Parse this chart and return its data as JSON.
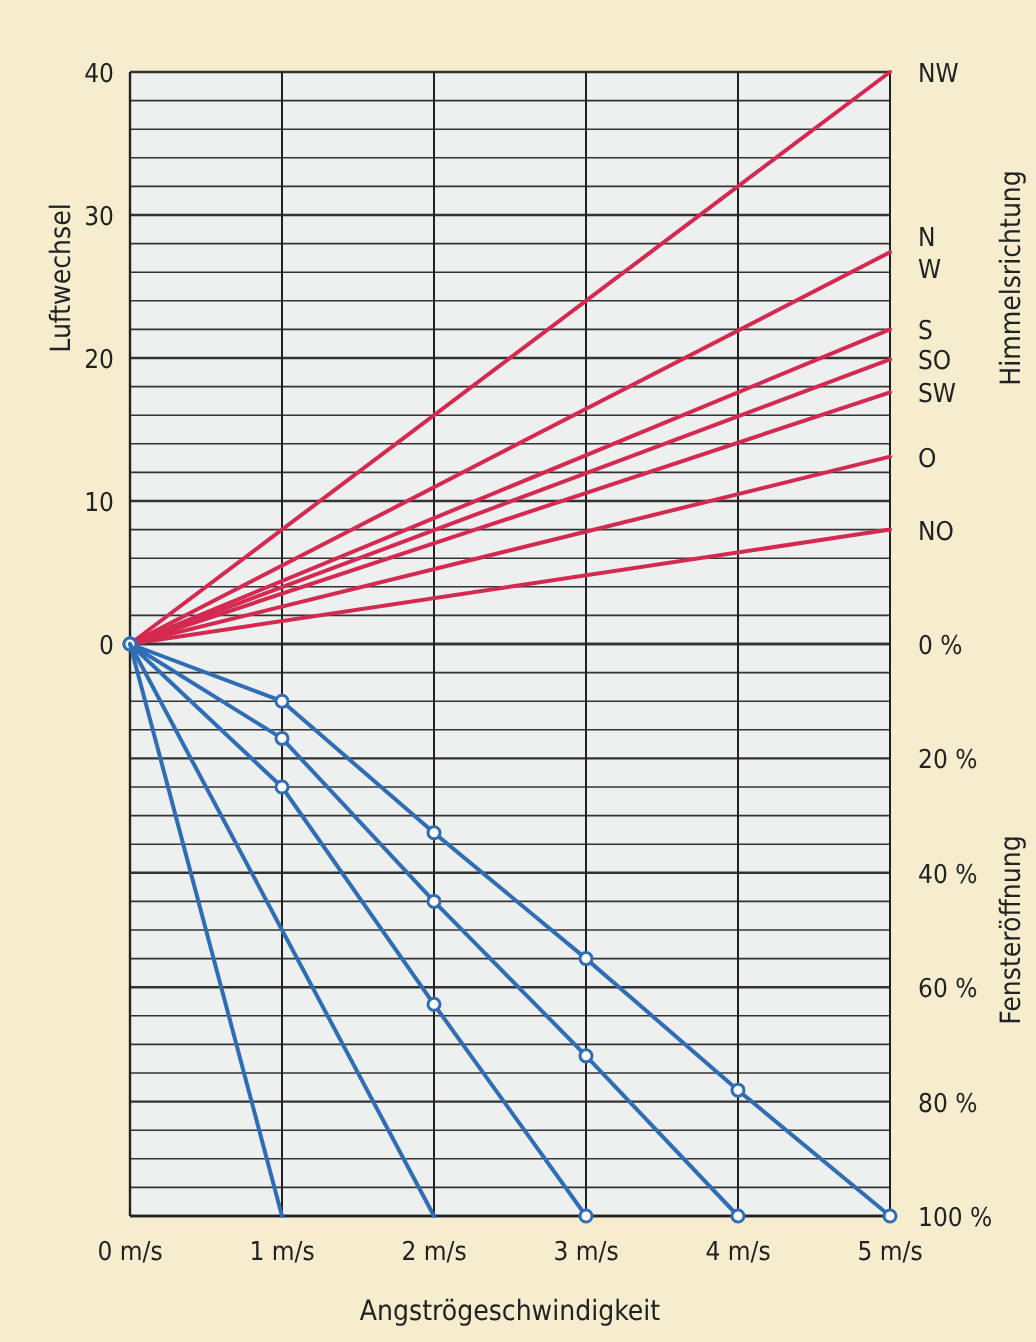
{
  "chart_data": {
    "type": "line",
    "xlabel": "Angströgeschwindigkeit",
    "ylabel": "Luftwechsel",
    "y2label": "Fensteröffnung",
    "annotations": [
      "Himmelsrichtung"
    ],
    "xlim": [
      0,
      5
    ],
    "xticks": [
      {
        "value": 0,
        "label": "0 m/s"
      },
      {
        "value": 1,
        "label": "1 m/s"
      },
      {
        "value": 2,
        "label": "2 m/s"
      },
      {
        "value": 3,
        "label": "3 m/s"
      },
      {
        "value": 4,
        "label": "4 m/s"
      },
      {
        "value": 5,
        "label": "5 m/s"
      }
    ],
    "ylim": [
      -40,
      40
    ],
    "yticks": [
      0,
      {
        "value": 2,
        "label": null
      },
      {
        "value": 4,
        "label": null
      },
      {
        "value": 6,
        "label": null
      },
      {
        "value": 8,
        "label": null
      },
      10,
      {
        "value": 12,
        "label": null
      },
      {
        "value": 14,
        "label": null
      },
      {
        "value": 16,
        "label": null
      },
      {
        "value": 18,
        "label": null
      },
      20,
      {
        "value": 22,
        "label": null
      },
      {
        "value": 24,
        "label": null
      },
      {
        "value": 26,
        "label": null
      },
      {
        "value": 28,
        "label": null
      },
      30,
      {
        "value": 32,
        "label": null
      },
      {
        "value": 34,
        "label": null
      },
      {
        "value": 36,
        "label": null
      },
      {
        "value": 38,
        "label": null
      },
      40
    ],
    "y2lim": [
      100,
      -100
    ],
    "y2ticks": [
      {
        "value": 0,
        "label": "0 %"
      },
      {
        "value": 5,
        "label": null
      },
      {
        "value": 10,
        "label": null
      },
      {
        "value": 15,
        "label": null
      },
      {
        "value": 20,
        "label": "20 %"
      },
      {
        "value": 25,
        "label": null
      },
      {
        "value": 30,
        "label": null
      },
      {
        "value": 35,
        "label": null
      },
      {
        "value": 40,
        "label": "40 %"
      },
      {
        "value": 45,
        "label": null
      },
      {
        "value": 50,
        "label": null
      },
      {
        "value": 55,
        "label": null
      },
      {
        "value": 60,
        "label": "60 %"
      },
      {
        "value": 65,
        "label": null
      },
      {
        "value": 70,
        "label": null
      },
      {
        "value": 75,
        "label": null
      },
      {
        "value": 80,
        "label": "80 %"
      },
      {
        "value": 85,
        "label": null
      },
      {
        "value": 90,
        "label": null
      },
      {
        "value": 95,
        "label": null
      },
      {
        "value": 100,
        "label": "100 %"
      }
    ],
    "grid": true,
    "marker": "none",
    "line_style": "solid",
    "series": [
      {
        "name": "NW",
        "color": "#d42a52",
        "x": [
          0,
          5
        ],
        "values": [
          0,
          40
        ]
      },
      {
        "name": "N W",
        "color": "#d42a52",
        "x": [
          0,
          5
        ],
        "values": [
          0,
          27.4
        ]
      },
      {
        "name": "S",
        "color": "#d42a52",
        "x": [
          0,
          5
        ],
        "values": [
          0,
          22
        ]
      },
      {
        "name": "SO",
        "color": "#d42a52",
        "x": [
          0,
          5
        ],
        "values": [
          0,
          19.9
        ]
      },
      {
        "name": "SW",
        "color": "#d42a52",
        "x": [
          0,
          5
        ],
        "values": [
          0,
          17.6
        ]
      },
      {
        "name": "O",
        "color": "#d42a52",
        "x": [
          0,
          5
        ],
        "values": [
          0,
          13.1
        ]
      },
      {
        "name": "NO",
        "color": "#d42a52",
        "x": [
          0,
          5
        ],
        "values": [
          0,
          8
        ]
      },
      {
        "color": "#2f6db5",
        "axis": "y2",
        "marker": "circle",
        "x": [
          0,
          1,
          2,
          3,
          4,
          5
        ],
        "values": [
          0,
          10,
          33,
          55,
          78,
          100
        ]
      },
      {
        "color": "#2f6db5",
        "axis": "y2",
        "marker": "circle",
        "x": [
          0,
          1,
          2,
          3,
          4
        ],
        "values": [
          0,
          16.5,
          45,
          72,
          100
        ]
      },
      {
        "color": "#2f6db5",
        "axis": "y2",
        "marker": "circle",
        "x": [
          0,
          1,
          2,
          3
        ],
        "values": [
          0,
          25,
          63,
          100
        ]
      },
      {
        "color": "#2f6db5",
        "axis": "y2",
        "x": [
          0,
          2
        ],
        "values": [
          0,
          100
        ]
      },
      {
        "color": "#2f6db5",
        "axis": "y2",
        "x": [
          0,
          1
        ],
        "values": [
          0,
          100
        ]
      }
    ]
  }
}
